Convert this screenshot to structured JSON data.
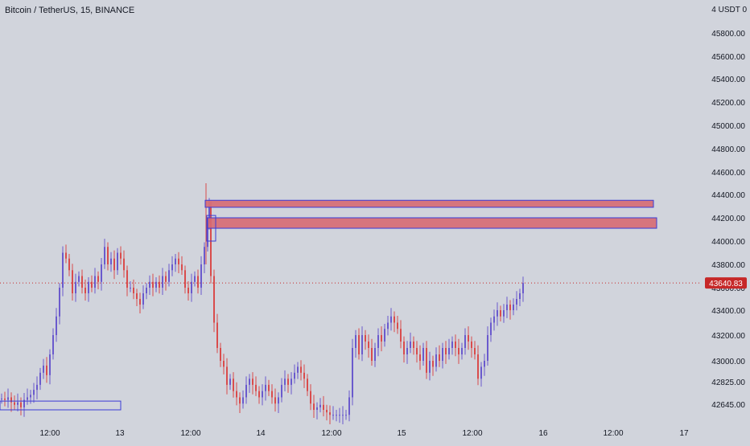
{
  "header": {
    "symbol": "Bitcoin / TetherUS, 15, BINANCE"
  },
  "price_scale": {
    "header_count": "4",
    "currency": "USDT",
    "header_trailing": "0"
  },
  "colors": {
    "background": "#d1d4dc",
    "up_candle": "#6a5acd",
    "down_candle": "#d94c4c",
    "zone_fill": "#d66a73",
    "zone_border": "#3b3bd6",
    "last_price_bg": "#c62828",
    "last_price_line": "#c62828"
  },
  "chart_data": {
    "type": "candlestick",
    "last_price": "43640.83",
    "y_ticks": [
      "45800.00",
      "45600.00",
      "45400.00",
      "45200.00",
      "45000.00",
      "44800.00",
      "44600.00",
      "44400.00",
      "44200.00",
      "44000.00",
      "43800.00",
      "43600.00",
      "43400.00",
      "43200.00",
      "43000.00",
      "42825.00",
      "42645.00"
    ],
    "x_ticks": [
      "12:00",
      "13",
      "12:00",
      "14",
      "12:00",
      "15",
      "12:00",
      "16",
      "12:00",
      "17"
    ],
    "zones": [
      {
        "from": "12:00",
        "to": "16",
        "low": 44290,
        "high": 44350
      },
      {
        "from": "12:00",
        "to": "16",
        "low": 44110,
        "high": 44200
      },
      {
        "from": "12:00",
        "to": "12:00",
        "low": 44000,
        "high": 44220
      },
      {
        "from": "start",
        "to": "13",
        "low": 42600,
        "high": 42670
      }
    ],
    "close_path": [
      [
        0,
        42690
      ],
      [
        4,
        42680
      ],
      [
        8,
        42700
      ],
      [
        12,
        42660
      ],
      [
        16,
        42640
      ],
      [
        20,
        42660
      ],
      [
        24,
        42620
      ],
      [
        28,
        42680
      ],
      [
        32,
        42700
      ],
      [
        36,
        42720
      ],
      [
        40,
        42760
      ],
      [
        44,
        42800
      ],
      [
        48,
        42900
      ],
      [
        52,
        42960
      ],
      [
        56,
        42880
      ],
      [
        60,
        43050
      ],
      [
        64,
        43200
      ],
      [
        68,
        43350
      ],
      [
        72,
        43600
      ],
      [
        76,
        43900
      ],
      [
        80,
        43850
      ],
      [
        84,
        43750
      ],
      [
        88,
        43550
      ],
      [
        92,
        43650
      ],
      [
        96,
        43700
      ],
      [
        100,
        43600
      ],
      [
        104,
        43550
      ],
      [
        108,
        43650
      ],
      [
        112,
        43600
      ],
      [
        116,
        43700
      ],
      [
        120,
        43650
      ],
      [
        124,
        43800
      ],
      [
        128,
        43950
      ],
      [
        132,
        43800
      ],
      [
        136,
        43850
      ],
      [
        140,
        43750
      ],
      [
        144,
        43900
      ],
      [
        148,
        43850
      ],
      [
        152,
        43750
      ],
      [
        156,
        43600
      ],
      [
        160,
        43600
      ],
      [
        164,
        43550
      ],
      [
        168,
        43500
      ],
      [
        172,
        43450
      ],
      [
        176,
        43550
      ],
      [
        180,
        43600
      ],
      [
        184,
        43650
      ],
      [
        188,
        43600
      ],
      [
        192,
        43650
      ],
      [
        196,
        43600
      ],
      [
        200,
        43700
      ],
      [
        204,
        43650
      ],
      [
        208,
        43750
      ],
      [
        212,
        43800
      ],
      [
        216,
        43850
      ],
      [
        220,
        43800
      ],
      [
        224,
        43750
      ],
      [
        228,
        43600
      ],
      [
        232,
        43550
      ],
      [
        236,
        43650
      ],
      [
        240,
        43700
      ],
      [
        244,
        43600
      ],
      [
        248,
        43800
      ],
      [
        252,
        43950
      ],
      [
        256,
        44150
      ],
      [
        258,
        44300
      ],
      [
        260,
        43700
      ],
      [
        264,
        43300
      ],
      [
        268,
        43100
      ],
      [
        272,
        43000
      ],
      [
        276,
        42950
      ],
      [
        280,
        42800
      ],
      [
        284,
        42850
      ],
      [
        288,
        42750
      ],
      [
        292,
        42700
      ],
      [
        296,
        42650
      ],
      [
        300,
        42700
      ],
      [
        304,
        42800
      ],
      [
        308,
        42850
      ],
      [
        312,
        42800
      ],
      [
        316,
        42750
      ],
      [
        320,
        42700
      ],
      [
        324,
        42750
      ],
      [
        328,
        42800
      ],
      [
        332,
        42750
      ],
      [
        336,
        42700
      ],
      [
        340,
        42650
      ],
      [
        344,
        42700
      ],
      [
        348,
        42800
      ],
      [
        352,
        42850
      ],
      [
        356,
        42800
      ],
      [
        360,
        42850
      ],
      [
        364,
        42900
      ],
      [
        368,
        42950
      ],
      [
        372,
        42900
      ],
      [
        376,
        42850
      ],
      [
        380,
        42750
      ],
      [
        384,
        42650
      ],
      [
        388,
        42600
      ],
      [
        392,
        42620
      ],
      [
        396,
        42640
      ],
      [
        400,
        42600
      ],
      [
        404,
        42580
      ],
      [
        408,
        42560
      ],
      [
        412,
        42560
      ],
      [
        416,
        42560
      ],
      [
        420,
        42560
      ],
      [
        424,
        42560
      ],
      [
        428,
        42560
      ],
      [
        432,
        42700
      ],
      [
        436,
        43100
      ],
      [
        440,
        43200
      ],
      [
        444,
        43050
      ],
      [
        448,
        43200
      ],
      [
        452,
        43150
      ],
      [
        456,
        43100
      ],
      [
        460,
        43000
      ],
      [
        464,
        43100
      ],
      [
        468,
        43200
      ],
      [
        472,
        43150
      ],
      [
        476,
        43250
      ],
      [
        480,
        43300
      ],
      [
        484,
        43350
      ],
      [
        488,
        43300
      ],
      [
        492,
        43250
      ],
      [
        496,
        43150
      ],
      [
        500,
        43050
      ],
      [
        504,
        43100
      ],
      [
        508,
        43150
      ],
      [
        512,
        43100
      ],
      [
        516,
        43050
      ],
      [
        520,
        43000
      ],
      [
        524,
        43100
      ],
      [
        528,
        42900
      ],
      [
        532,
        43000
      ],
      [
        536,
        42950
      ],
      [
        540,
        43050
      ],
      [
        544,
        43000
      ],
      [
        548,
        43100
      ],
      [
        552,
        43050
      ],
      [
        556,
        43100
      ],
      [
        560,
        43150
      ],
      [
        564,
        43100
      ],
      [
        568,
        43050
      ],
      [
        572,
        43100
      ],
      [
        576,
        43200
      ],
      [
        580,
        43150
      ],
      [
        584,
        43100
      ],
      [
        588,
        43050
      ],
      [
        592,
        42850
      ],
      [
        596,
        42950
      ],
      [
        600,
        43000
      ],
      [
        604,
        43200
      ],
      [
        608,
        43300
      ],
      [
        612,
        43350
      ],
      [
        616,
        43400
      ],
      [
        620,
        43350
      ],
      [
        624,
        43400
      ],
      [
        628,
        43450
      ],
      [
        632,
        43400
      ],
      [
        636,
        43450
      ],
      [
        640,
        43500
      ],
      [
        644,
        43550
      ],
      [
        648,
        43640
      ]
    ]
  }
}
